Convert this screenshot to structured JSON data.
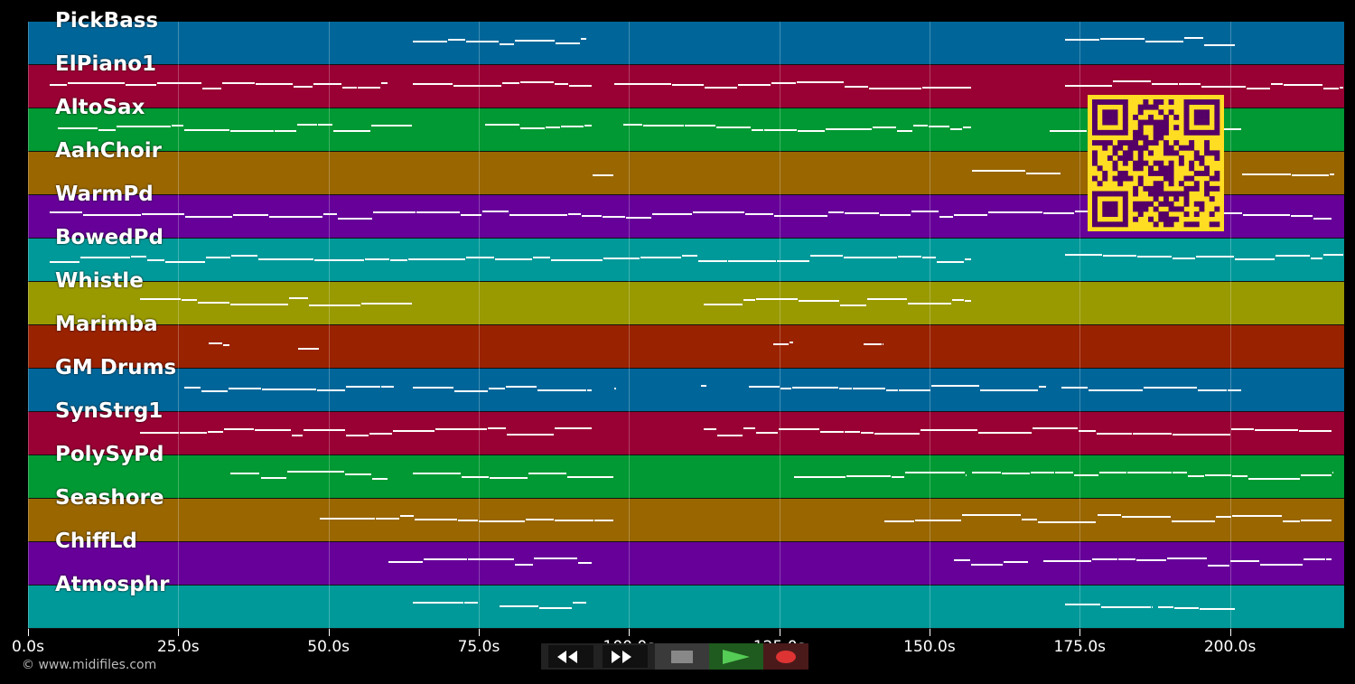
{
  "tracks": [
    {
      "name": "PickBass",
      "color": "#006699",
      "segments": [
        [
          64,
          93
        ],
        [
          172.5,
          201
        ]
      ]
    },
    {
      "name": "ElPiano1",
      "color": "#990033",
      "segments": [
        [
          3.6,
          60
        ],
        [
          64,
          94
        ],
        [
          97.5,
          157
        ],
        [
          172.5,
          219
        ]
      ]
    },
    {
      "name": "AltoSax",
      "color": "#009933",
      "segments": [
        [
          5,
          64
        ],
        [
          76,
          94
        ],
        [
          99,
          157
        ],
        [
          170,
          202
        ]
      ]
    },
    {
      "name": "AahChoir",
      "color": "#996600",
      "segments": [
        [
          94,
          97.5
        ],
        [
          157,
          172
        ],
        [
          202,
          217.5
        ]
      ]
    },
    {
      "name": "WarmPd",
      "color": "#660099",
      "segments": [
        [
          3.6,
          217
        ]
      ]
    },
    {
      "name": "BowedPd",
      "color": "#009999",
      "segments": [
        [
          3.6,
          157
        ],
        [
          172.5,
          219
        ]
      ]
    },
    {
      "name": "Whistle",
      "color": "#999900",
      "segments": [
        [
          18.6,
          64
        ],
        [
          112.5,
          157
        ]
      ]
    },
    {
      "name": "Marimba",
      "color": "#992200",
      "segments": [
        [
          30,
          33.6
        ],
        [
          45,
          48.6
        ],
        [
          124,
          127.5
        ],
        [
          139,
          142.5
        ]
      ]
    },
    {
      "name": "GM Drums",
      "color": "#006699",
      "segments": [
        [
          26,
          61
        ],
        [
          64,
          94
        ],
        [
          97.5,
          98
        ],
        [
          112,
          113
        ],
        [
          120,
          169.5
        ],
        [
          172,
          202
        ]
      ]
    },
    {
      "name": "SynStrg1",
      "color": "#990033",
      "segments": [
        [
          18.6,
          94
        ],
        [
          112.5,
          217
        ]
      ]
    },
    {
      "name": "PolySyPd",
      "color": "#009933",
      "segments": [
        [
          33.6,
          60
        ],
        [
          64,
          97.5
        ],
        [
          127.5,
          156
        ],
        [
          157,
          217
        ]
      ]
    },
    {
      "name": "Seashore",
      "color": "#996600",
      "segments": [
        [
          48.6,
          97.5
        ],
        [
          142.5,
          217
        ]
      ]
    },
    {
      "name": "ChiffLd",
      "color": "#660099",
      "segments": [
        [
          60,
          94
        ],
        [
          154,
          166.5
        ],
        [
          169,
          217
        ]
      ]
    },
    {
      "name": "Atmosphr",
      "color": "#009999",
      "segments": [
        [
          64,
          75
        ],
        [
          78.5,
          93
        ],
        [
          172.5,
          187
        ],
        [
          188,
          201
        ]
      ]
    }
  ],
  "timeline": {
    "max_seconds": 219,
    "ticks": [
      "0.0s",
      "25.0s",
      "50.0s",
      "75.0s",
      "100.0s",
      "125.0s",
      "150.0s",
      "175.0s",
      "200.0s"
    ],
    "tick_values": [
      0,
      25,
      50,
      75,
      100,
      125,
      150,
      175,
      200
    ]
  },
  "controls": {
    "rewind": "rewind-icon",
    "forward": "fast-forward-icon",
    "stop": "stop-icon",
    "play": "play-icon",
    "record": "record-icon"
  },
  "copyright": "© www.midifiles.com",
  "qr_colors": {
    "fg": "#550066",
    "bg": "#ffdd22"
  }
}
